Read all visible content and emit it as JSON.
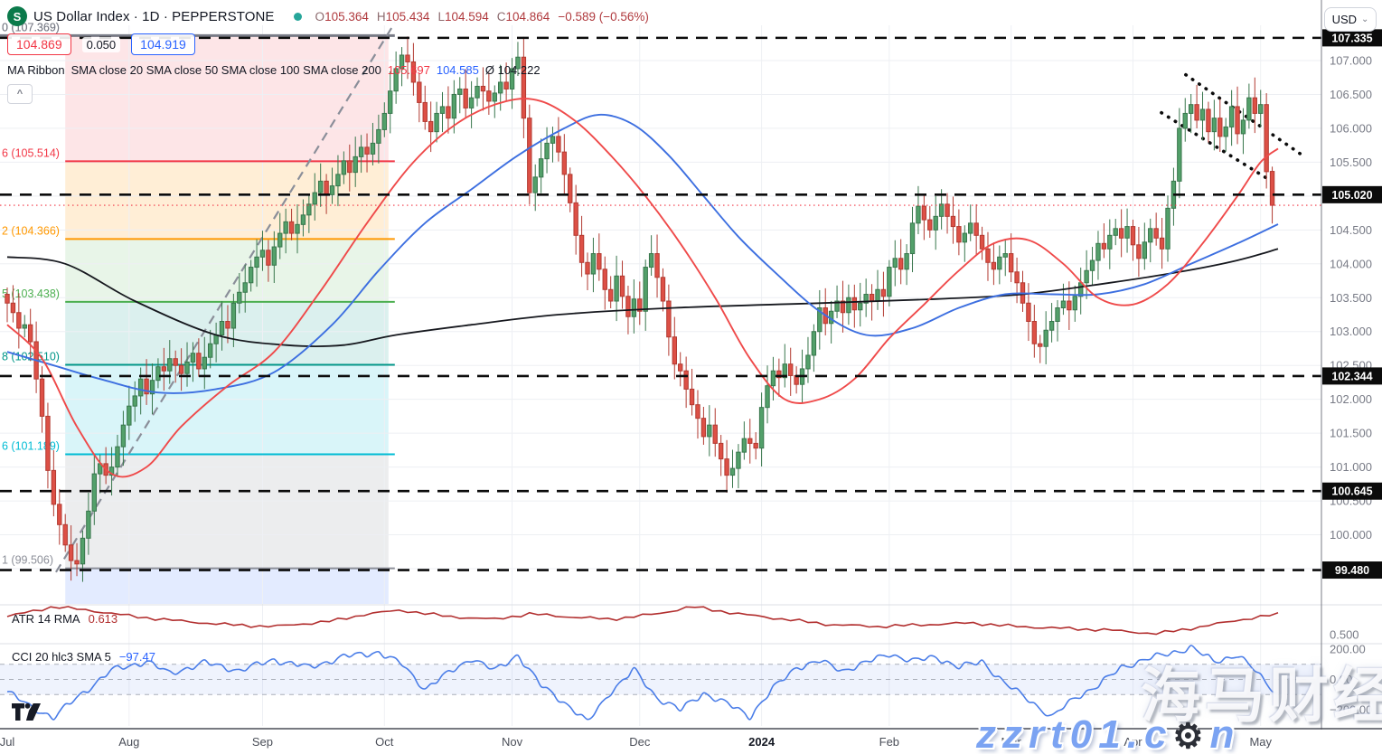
{
  "header": {
    "symbol_logo_letter": "S",
    "title": "US Dollar Index · 1D · PEPPERSTONE",
    "ohlc": {
      "o_label": "O",
      "o": "105.364",
      "h_label": "H",
      "h": "105.434",
      "l_label": "L",
      "l": "104.594",
      "c_label": "C",
      "c": "104.864",
      "change": "−0.589 (−0.56%)"
    },
    "price_boxes": {
      "low": "104.869",
      "spread": "0.050",
      "high": "104.919"
    },
    "ma_ribbon": {
      "title": "MA Ribbon",
      "params": "SMA close 20 SMA close 50 SMA close 100 SMA close 200",
      "v1": "105.697",
      "v2": "104.585",
      "v_avg": "Ø 104.222"
    },
    "currency": "USD"
  },
  "indicators": {
    "atr": {
      "label": "ATR 14 RMA",
      "value": "0.613"
    },
    "cci": {
      "label": "CCI 20 hlc3 SMA 5",
      "value": "−97.47"
    }
  },
  "watermark": {
    "line1": "海马财经",
    "line2_prefix": "zzrt01.c",
    "gear": "⚙",
    "line2_suffix": "n"
  },
  "chart_data": {
    "type": "candlestick",
    "title": "US Dollar Index",
    "timeframe": "1D",
    "price_ylim": [
      98.98,
      107.52
    ],
    "months": [
      {
        "label": "Jul",
        "day": 0
      },
      {
        "label": "Aug",
        "day": 21
      },
      {
        "label": "Sep",
        "day": 44
      },
      {
        "label": "Oct",
        "day": 65
      },
      {
        "label": "Nov",
        "day": 87
      },
      {
        "label": "Dec",
        "day": 109
      },
      {
        "label": "2024",
        "day": 130,
        "bold": true
      },
      {
        "label": "Feb",
        "day": 152
      },
      {
        "label": "Mar",
        "day": 173
      },
      {
        "label": "Apr",
        "day": 194
      },
      {
        "label": "May",
        "day": 216
      }
    ],
    "price_labels": [
      107.0,
      106.5,
      106.0,
      105.5,
      104.5,
      104.0,
      103.5,
      103.0,
      102.5,
      102.0,
      101.5,
      101.0,
      100.5,
      100.0
    ],
    "price_tags": [
      107.335,
      105.02,
      102.344,
      100.645,
      99.48
    ],
    "current_price_line": 104.864,
    "first_open": 103.55,
    "closes": [
      103.42,
      103.28,
      103.05,
      103.1,
      102.85,
      102.3,
      101.75,
      100.95,
      100.45,
      100.15,
      99.85,
      99.62,
      99.57,
      99.95,
      100.35,
      100.9,
      101.05,
      100.88,
      101.0,
      101.3,
      101.62,
      101.9,
      102.05,
      102.3,
      102.08,
      102.28,
      102.48,
      102.42,
      102.6,
      102.5,
      102.38,
      102.55,
      102.68,
      102.45,
      102.62,
      102.82,
      102.95,
      103.15,
      103.05,
      103.42,
      103.58,
      103.72,
      103.95,
      104.1,
      104.2,
      103.98,
      104.25,
      104.45,
      104.62,
      104.45,
      104.58,
      104.72,
      104.88,
      105.05,
      105.22,
      105.02,
      105.15,
      105.32,
      105.52,
      105.35,
      105.58,
      105.72,
      105.62,
      105.78,
      105.98,
      106.22,
      106.55,
      106.88,
      107.08,
      106.98,
      106.68,
      106.38,
      106.1,
      105.95,
      106.22,
      106.32,
      106.15,
      106.5,
      106.58,
      106.3,
      106.45,
      106.62,
      106.55,
      106.4,
      106.52,
      106.68,
      106.58,
      106.88,
      107.05,
      106.15,
      105.05,
      105.28,
      105.55,
      105.78,
      105.88,
      105.65,
      105.32,
      104.9,
      104.42,
      104.02,
      103.85,
      104.15,
      103.92,
      103.62,
      103.45,
      103.82,
      103.52,
      103.22,
      103.48,
      103.3,
      103.95,
      104.15,
      103.8,
      103.45,
      102.92,
      102.52,
      102.42,
      102.15,
      101.92,
      101.72,
      101.45,
      101.62,
      101.35,
      101.12,
      100.88,
      100.98,
      101.22,
      101.42,
      101.35,
      101.28,
      101.88,
      102.2,
      102.42,
      102.32,
      102.52,
      102.35,
      102.22,
      102.45,
      102.65,
      103.0,
      103.35,
      103.12,
      103.3,
      103.45,
      103.28,
      103.5,
      103.32,
      103.42,
      103.55,
      103.45,
      103.62,
      103.52,
      103.95,
      104.08,
      103.92,
      104.15,
      104.6,
      104.85,
      104.65,
      104.5,
      104.7,
      104.88,
      104.7,
      104.55,
      104.32,
      104.45,
      104.6,
      104.42,
      104.22,
      104.02,
      103.92,
      104.1,
      104.15,
      103.88,
      103.72,
      103.42,
      103.15,
      102.82,
      102.78,
      103.02,
      103.15,
      103.35,
      103.45,
      103.32,
      103.52,
      103.72,
      103.9,
      104.05,
      104.3,
      104.22,
      104.42,
      104.52,
      104.38,
      104.55,
      104.28,
      104.08,
      104.32,
      104.52,
      104.38,
      104.22,
      104.82,
      105.22,
      106.0,
      106.22,
      106.35,
      106.12,
      106.28,
      105.95,
      106.15,
      105.88,
      106.02,
      106.32,
      105.92,
      106.12,
      106.45,
      106.22,
      106.35,
      105.36,
      104.864
    ],
    "last_candle": {
      "open": 105.364,
      "high": 105.434,
      "low": 104.594,
      "close": 104.864
    },
    "ma_lines": [
      {
        "name": "sma-200",
        "color": "#16181e",
        "width": 1.8,
        "anchors": [
          [
            0,
            104.1
          ],
          [
            10,
            104.0
          ],
          [
            22,
            103.45
          ],
          [
            36,
            102.95
          ],
          [
            48,
            102.8
          ],
          [
            58,
            102.8
          ],
          [
            67,
            102.95
          ],
          [
            80,
            103.1
          ],
          [
            95,
            103.25
          ],
          [
            115,
            103.35
          ],
          [
            140,
            103.42
          ],
          [
            160,
            103.48
          ],
          [
            175,
            103.55
          ],
          [
            190,
            103.72
          ],
          [
            202,
            103.88
          ],
          [
            212,
            104.05
          ],
          [
            219,
            104.22
          ]
        ]
      },
      {
        "name": "sma-50",
        "color": "#3d6fe0",
        "width": 1.9,
        "anchors": [
          [
            0,
            102.7
          ],
          [
            8,
            102.5
          ],
          [
            16,
            102.3
          ],
          [
            26,
            102.1
          ],
          [
            36,
            102.15
          ],
          [
            46,
            102.4
          ],
          [
            56,
            103.1
          ],
          [
            64,
            103.9
          ],
          [
            72,
            104.6
          ],
          [
            80,
            105.1
          ],
          [
            88,
            105.6
          ],
          [
            96,
            106.0
          ],
          [
            102,
            106.2
          ],
          [
            108,
            106.05
          ],
          [
            114,
            105.6
          ],
          [
            120,
            105.0
          ],
          [
            126,
            104.4
          ],
          [
            132,
            103.9
          ],
          [
            140,
            103.3
          ],
          [
            148,
            102.95
          ],
          [
            156,
            103.05
          ],
          [
            164,
            103.35
          ],
          [
            172,
            103.55
          ],
          [
            180,
            103.55
          ],
          [
            188,
            103.55
          ],
          [
            196,
            103.7
          ],
          [
            204,
            104.0
          ],
          [
            212,
            104.3
          ],
          [
            219,
            104.585
          ]
        ]
      },
      {
        "name": "sma-20",
        "color": "#ef4a4a",
        "width": 1.9,
        "anchors": [
          [
            0,
            103.1
          ],
          [
            6,
            102.6
          ],
          [
            12,
            101.6
          ],
          [
            18,
            100.9
          ],
          [
            24,
            101.0
          ],
          [
            30,
            101.6
          ],
          [
            38,
            102.2
          ],
          [
            46,
            102.7
          ],
          [
            54,
            103.6
          ],
          [
            62,
            104.6
          ],
          [
            70,
            105.5
          ],
          [
            78,
            106.1
          ],
          [
            86,
            106.4
          ],
          [
            92,
            106.4
          ],
          [
            98,
            106.1
          ],
          [
            104,
            105.6
          ],
          [
            110,
            105.0
          ],
          [
            116,
            104.3
          ],
          [
            122,
            103.5
          ],
          [
            128,
            102.6
          ],
          [
            134,
            102.0
          ],
          [
            140,
            102.0
          ],
          [
            146,
            102.3
          ],
          [
            152,
            102.9
          ],
          [
            158,
            103.4
          ],
          [
            164,
            103.9
          ],
          [
            170,
            104.3
          ],
          [
            176,
            104.35
          ],
          [
            182,
            104.0
          ],
          [
            188,
            103.5
          ],
          [
            194,
            103.4
          ],
          [
            200,
            103.7
          ],
          [
            206,
            104.3
          ],
          [
            212,
            105.0
          ],
          [
            216,
            105.5
          ],
          [
            219,
            105.7
          ]
        ]
      }
    ],
    "fib": {
      "x_range_days": [
        10,
        65.7
      ],
      "levels": [
        {
          "ratio": "0",
          "price": 107.369,
          "color": "#787b86",
          "label": "0 (107.369)",
          "extend_left": true
        },
        {
          "ratio": "0.236",
          "price": 105.514,
          "color": "#f23645",
          "label": "6 (105.514)"
        },
        {
          "ratio": "0.382",
          "price": 104.366,
          "color": "#ff9800",
          "label": "2 (104.366)"
        },
        {
          "ratio": "0.5",
          "price": 103.438,
          "color": "#4caf50",
          "label": "5 (103.438)"
        },
        {
          "ratio": "0.618",
          "price": 102.51,
          "color": "#009688",
          "label": "8 (102.510)"
        },
        {
          "ratio": "0.786",
          "price": 101.189,
          "color": "#00bcd4",
          "label": "6 (101.189)"
        },
        {
          "ratio": "1",
          "price": 99.506,
          "color": "#8c8f99",
          "label": "1 (99.506)"
        }
      ],
      "zones": [
        {
          "from": 107.369,
          "to": 105.514,
          "fill": "rgba(242,54,69,0.13)"
        },
        {
          "from": 105.514,
          "to": 104.366,
          "fill": "rgba(255,152,0,0.16)"
        },
        {
          "from": 104.366,
          "to": 103.438,
          "fill": "rgba(76,175,80,0.13)"
        },
        {
          "from": 103.438,
          "to": 102.51,
          "fill": "rgba(0,150,136,0.14)"
        },
        {
          "from": 102.51,
          "to": 101.189,
          "fill": "rgba(0,188,212,0.15)"
        },
        {
          "from": 101.189,
          "to": 99.506,
          "fill": "rgba(130,133,144,0.15)"
        },
        {
          "from": 99.506,
          "to": 98.98,
          "fill": "rgba(41,98,255,0.13)"
        }
      ]
    },
    "trend_lines": [
      {
        "name": "rally-trendline",
        "points": [
          [
            8.4,
            99.45
          ],
          [
            66.8,
            107.56
          ]
        ],
        "color": "#8a8e99",
        "width": 2.2,
        "dash": "10 7",
        "cap": "butt"
      },
      {
        "name": "channel-upper",
        "points": [
          [
            203.1,
            106.79
          ],
          [
            223.4,
            105.59
          ]
        ],
        "color": "#0c0c0c",
        "width": 3.6,
        "dash": "0.5 8.5",
        "cap": "round"
      },
      {
        "name": "channel-lower",
        "points": [
          [
            198.9,
            106.23
          ],
          [
            217.3,
            105.25
          ]
        ],
        "color": "#0c0c0c",
        "width": 3.6,
        "dash": "0.5 8.5",
        "cap": "round"
      }
    ],
    "atr_pane": {
      "ylim": [
        0.45,
        0.66
      ],
      "axis_labels": [
        0.5
      ],
      "color": "#b22f2f",
      "anchors": [
        [
          0,
          0.6
        ],
        [
          8,
          0.655
        ],
        [
          14,
          0.635
        ],
        [
          22,
          0.6
        ],
        [
          30,
          0.575
        ],
        [
          38,
          0.555
        ],
        [
          46,
          0.545
        ],
        [
          56,
          0.575
        ],
        [
          62,
          0.615
        ],
        [
          68,
          0.635
        ],
        [
          76,
          0.6
        ],
        [
          84,
          0.585
        ],
        [
          90,
          0.615
        ],
        [
          96,
          0.6
        ],
        [
          104,
          0.585
        ],
        [
          112,
          0.615
        ],
        [
          118,
          0.655
        ],
        [
          126,
          0.615
        ],
        [
          134,
          0.585
        ],
        [
          142,
          0.555
        ],
        [
          150,
          0.545
        ],
        [
          158,
          0.555
        ],
        [
          166,
          0.565
        ],
        [
          174,
          0.545
        ],
        [
          182,
          0.535
        ],
        [
          190,
          0.525
        ],
        [
          198,
          0.505
        ],
        [
          206,
          0.545
        ],
        [
          212,
          0.58
        ],
        [
          219,
          0.613
        ]
      ]
    },
    "cci_pane": {
      "ylim": [
        -307,
        236
      ],
      "band": [
        -100,
        100
      ],
      "axis_labels": [
        200,
        0,
        -200
      ],
      "color": "#4a7de8",
      "anchors": [
        [
          0,
          -80
        ],
        [
          4,
          -180
        ],
        [
          8,
          -250
        ],
        [
          12,
          -120
        ],
        [
          18,
          60
        ],
        [
          24,
          120
        ],
        [
          28,
          40
        ],
        [
          34,
          110
        ],
        [
          40,
          60
        ],
        [
          46,
          130
        ],
        [
          52,
          80
        ],
        [
          58,
          150
        ],
        [
          64,
          180
        ],
        [
          68,
          100
        ],
        [
          72,
          -60
        ],
        [
          76,
          40
        ],
        [
          80,
          140
        ],
        [
          84,
          60
        ],
        [
          88,
          160
        ],
        [
          92,
          -40
        ],
        [
          96,
          -150
        ],
        [
          100,
          -280
        ],
        [
          104,
          -80
        ],
        [
          108,
          60
        ],
        [
          112,
          -120
        ],
        [
          116,
          -200
        ],
        [
          120,
          -90
        ],
        [
          124,
          -160
        ],
        [
          128,
          -240
        ],
        [
          132,
          -60
        ],
        [
          136,
          80
        ],
        [
          140,
          120
        ],
        [
          144,
          60
        ],
        [
          148,
          110
        ],
        [
          152,
          170
        ],
        [
          156,
          120
        ],
        [
          160,
          150
        ],
        [
          164,
          80
        ],
        [
          168,
          120
        ],
        [
          172,
          -30
        ],
        [
          176,
          -130
        ],
        [
          180,
          -250
        ],
        [
          184,
          -120
        ],
        [
          188,
          -40
        ],
        [
          192,
          80
        ],
        [
          196,
          130
        ],
        [
          200,
          170
        ],
        [
          204,
          210
        ],
        [
          208,
          120
        ],
        [
          212,
          160
        ],
        [
          215,
          60
        ],
        [
          217,
          -20
        ],
        [
          219,
          -97
        ]
      ]
    }
  }
}
